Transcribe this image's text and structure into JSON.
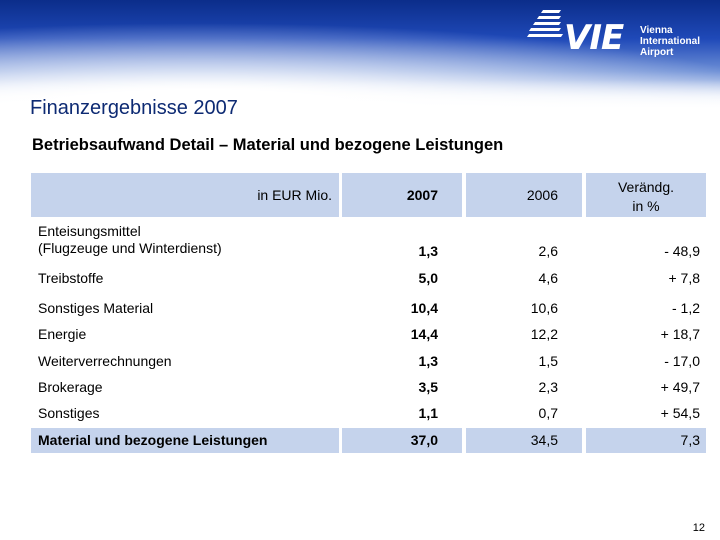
{
  "brand": {
    "logo_text": "VIE",
    "logo_lines": [
      "Vienna",
      "International",
      "Airport"
    ]
  },
  "title": "Finanzergebnisse 2007",
  "subtitle": "Betriebsaufwand Detail – Material und bezogene Leistungen",
  "table": {
    "headers": {
      "label": "in EUR Mio.",
      "y2007": "2007",
      "y2006": "2006",
      "change_line1": "Verändg.",
      "change_line2": "in %"
    },
    "rows": [
      {
        "label_line1": "Enteisungsmittel",
        "label_line2": "(Flugzeuge und Winterdienst)",
        "y2007": "1,3",
        "y2006": "2,6",
        "change": "- 48,9"
      },
      {
        "label": "Treibstoffe",
        "y2007": "5,0",
        "y2006": "4,6",
        "change": "+ 7,8"
      },
      {
        "label": "Sonstiges Material",
        "y2007": "10,4",
        "y2006": "10,6",
        "change": "- 1,2"
      },
      {
        "label": "Energie",
        "y2007": "14,4",
        "y2006": "12,2",
        "change": "+ 18,7"
      },
      {
        "label": "Weiterverrechnungen",
        "y2007": "1,3",
        "y2006": "1,5",
        "change": "- 17,0"
      },
      {
        "label": "Brokerage",
        "y2007": "3,5",
        "y2006": "2,3",
        "change": "+ 49,7"
      },
      {
        "label": "Sonstiges",
        "y2007": "1,1",
        "y2006": "0,7",
        "change": "+ 54,5"
      }
    ],
    "total": {
      "label": "Material und bezogene Leistungen",
      "y2007": "37,0",
      "y2006": "34,5",
      "change": "7,3"
    }
  },
  "page_number": "12",
  "colors": {
    "title": "#0d2a73",
    "header_fill": "#c5d3ec",
    "band_top": "#0b2d8a"
  }
}
